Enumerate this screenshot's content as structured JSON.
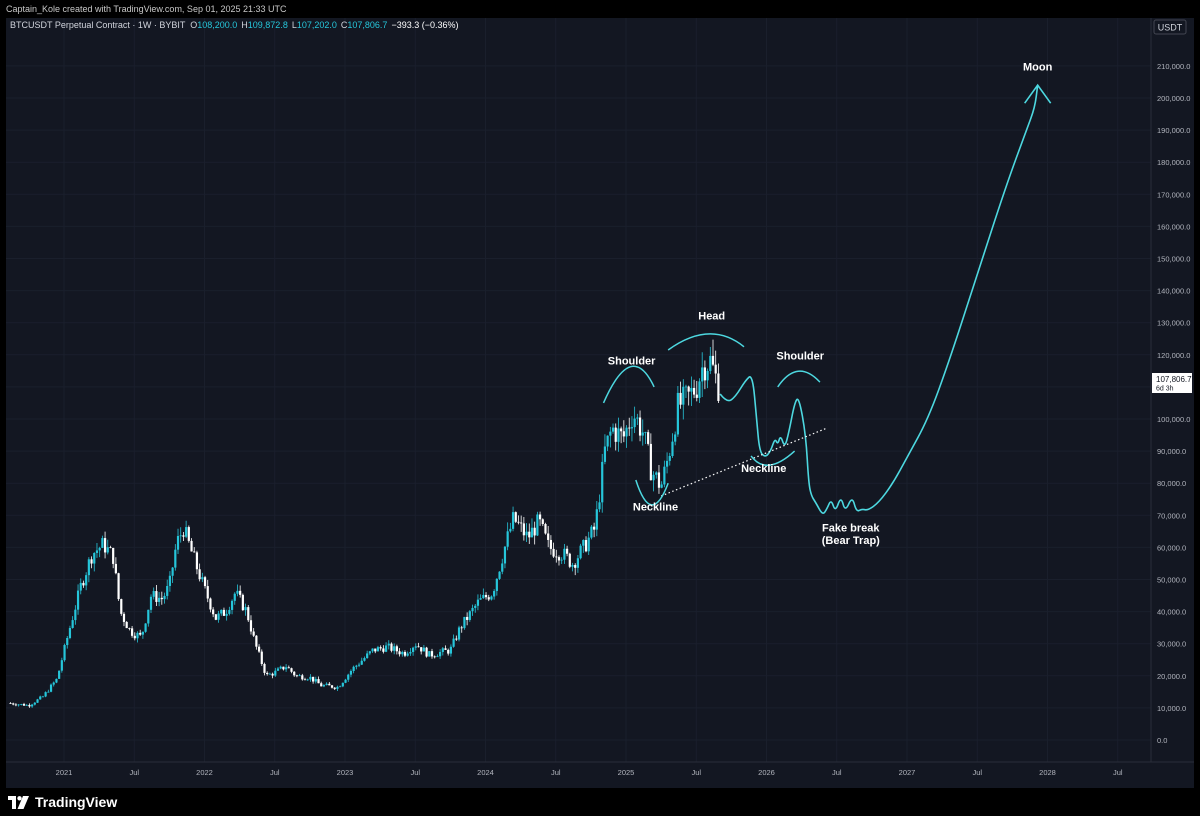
{
  "header": {
    "attribution": "Captain_Kole created with TradingView.com, Sep 01, 2025 21:33 UTC"
  },
  "legend": {
    "symbol": "BTCUSDT Perpetual Contract · 1W · BYBIT",
    "open_label": "O",
    "open": "108,200.0",
    "high_label": "H",
    "high": "109,872.8",
    "low_label": "L",
    "low": "107,202.0",
    "close_label": "C",
    "close": "107,806.7",
    "change": "−393.3 (−0.36%)"
  },
  "price_scale": {
    "currency": "USDT",
    "last_price": "107,806.7",
    "countdown": "6d 3h"
  },
  "brand": {
    "name": "TradingView"
  },
  "colors": {
    "background": "#131722",
    "grid": "#1a1f2c",
    "up": "#26c6da",
    "down": "#ffffff",
    "drawing": "#4dd8e0",
    "text": "#b2b5be",
    "annotation": "#ffffff"
  },
  "chart_data": {
    "type": "candlestick",
    "title": "BTCUSDT Perpetual Contract · 1W · BYBIT",
    "y_axis": {
      "min": 0,
      "max": 215000,
      "ticks": [
        0,
        10000,
        20000,
        30000,
        40000,
        50000,
        60000,
        70000,
        80000,
        90000,
        100000,
        110000,
        120000,
        130000,
        140000,
        150000,
        160000,
        170000,
        180000,
        190000,
        200000,
        210000
      ],
      "tick_labels": [
        "0.0",
        "10,000.0",
        "20,000.0",
        "30,000.0",
        "40,000.0",
        "50,000.0",
        "60,000.0",
        "70,000.0",
        "80,000.0",
        "90,000.0",
        "100,000.0",
        "110,000.0",
        "120,000.0",
        "130,000.0",
        "140,000.0",
        "150,000.0",
        "160,000.0",
        "170,000.0",
        "180,000.0",
        "190,000.0",
        "200,000.0",
        "210,000.0"
      ]
    },
    "x_axis": {
      "start": 2020.6,
      "end": 2028.5,
      "ticks": [
        {
          "t": 2021.0,
          "label": "2021"
        },
        {
          "t": 2021.5,
          "label": "Jul"
        },
        {
          "t": 2022.0,
          "label": "2022"
        },
        {
          "t": 2022.5,
          "label": "Jul"
        },
        {
          "t": 2023.0,
          "label": "2023"
        },
        {
          "t": 2023.5,
          "label": "Jul"
        },
        {
          "t": 2024.0,
          "label": "2024"
        },
        {
          "t": 2024.5,
          "label": "Jul"
        },
        {
          "t": 2025.0,
          "label": "2025"
        },
        {
          "t": 2025.5,
          "label": "Jul"
        },
        {
          "t": 2026.0,
          "label": "2026"
        },
        {
          "t": 2026.5,
          "label": "Jul"
        },
        {
          "t": 2027.0,
          "label": "2027"
        },
        {
          "t": 2027.5,
          "label": "Jul"
        },
        {
          "t": 2028.0,
          "label": "2028"
        },
        {
          "t": 2028.5,
          "label": "Jul"
        }
      ]
    },
    "price_keypoints": [
      [
        2020.6,
        11500
      ],
      [
        2020.75,
        10800
      ],
      [
        2020.85,
        13500
      ],
      [
        2020.95,
        19000
      ],
      [
        2021.03,
        33000
      ],
      [
        2021.12,
        48000
      ],
      [
        2021.2,
        58000
      ],
      [
        2021.28,
        61000
      ],
      [
        2021.35,
        57000
      ],
      [
        2021.4,
        40000
      ],
      [
        2021.47,
        34000
      ],
      [
        2021.55,
        32000
      ],
      [
        2021.62,
        45000
      ],
      [
        2021.7,
        44000
      ],
      [
        2021.75,
        48000
      ],
      [
        2021.8,
        61000
      ],
      [
        2021.85,
        66000
      ],
      [
        2021.92,
        57000
      ],
      [
        2022.0,
        47000
      ],
      [
        2022.08,
        38000
      ],
      [
        2022.15,
        40000
      ],
      [
        2022.22,
        46000
      ],
      [
        2022.3,
        40000
      ],
      [
        2022.36,
        30000
      ],
      [
        2022.44,
        20000
      ],
      [
        2022.5,
        21000
      ],
      [
        2022.58,
        23000
      ],
      [
        2022.65,
        20000
      ],
      [
        2022.75,
        19500
      ],
      [
        2022.83,
        17000
      ],
      [
        2022.95,
        16500
      ],
      [
        2023.05,
        22000
      ],
      [
        2023.2,
        28000
      ],
      [
        2023.3,
        29000
      ],
      [
        2023.42,
        27000
      ],
      [
        2023.5,
        30000
      ],
      [
        2023.6,
        26500
      ],
      [
        2023.75,
        28000
      ],
      [
        2023.82,
        35000
      ],
      [
        2023.95,
        43000
      ],
      [
        2024.05,
        46000
      ],
      [
        2024.15,
        62000
      ],
      [
        2024.2,
        69000
      ],
      [
        2024.3,
        63000
      ],
      [
        2024.38,
        68000
      ],
      [
        2024.45,
        60000
      ],
      [
        2024.55,
        58000
      ],
      [
        2024.62,
        55000
      ],
      [
        2024.7,
        60000
      ],
      [
        2024.78,
        66000
      ],
      [
        2024.85,
        90000
      ],
      [
        2024.9,
        97000
      ],
      [
        2024.98,
        94000
      ],
      [
        2025.05,
        102000
      ],
      [
        2025.12,
        96000
      ],
      [
        2025.18,
        84000
      ],
      [
        2025.25,
        79000
      ],
      [
        2025.3,
        88000
      ],
      [
        2025.37,
        104000
      ],
      [
        2025.45,
        107000
      ],
      [
        2025.5,
        110000
      ],
      [
        2025.55,
        117000
      ],
      [
        2025.6,
        118000
      ],
      [
        2025.66,
        110000
      ],
      [
        2025.67,
        107800
      ]
    ],
    "projection_points": [
      [
        2025.67,
        107800
      ],
      [
        2025.72,
        105000
      ],
      [
        2025.78,
        107000
      ],
      [
        2025.85,
        112000
      ],
      [
        2025.9,
        114000
      ],
      [
        2025.93,
        100000
      ],
      [
        2025.95,
        90000
      ],
      [
        2025.99,
        88000
      ],
      [
        2026.03,
        90000
      ],
      [
        2026.06,
        94000
      ],
      [
        2026.08,
        92000
      ],
      [
        2026.1,
        95000
      ],
      [
        2026.13,
        91000
      ],
      [
        2026.16,
        96000
      ],
      [
        2026.2,
        105000
      ],
      [
        2026.23,
        107000
      ],
      [
        2026.28,
        95000
      ],
      [
        2026.3,
        80000
      ],
      [
        2026.32,
        76000
      ],
      [
        2026.35,
        74000
      ],
      [
        2026.4,
        70000
      ],
      [
        2026.43,
        72000
      ],
      [
        2026.46,
        75000
      ],
      [
        2026.49,
        71000
      ],
      [
        2026.53,
        76000
      ],
      [
        2026.56,
        71000
      ],
      [
        2026.61,
        76000
      ],
      [
        2026.64,
        71000
      ],
      [
        2026.68,
        72000
      ],
      [
        2026.72,
        71500
      ],
      [
        2026.8,
        74000
      ],
      [
        2026.9,
        80000
      ],
      [
        2027.0,
        88000
      ],
      [
        2027.15,
        100000
      ],
      [
        2027.3,
        118000
      ],
      [
        2027.5,
        145000
      ],
      [
        2027.7,
        172000
      ],
      [
        2027.85,
        190000
      ],
      [
        2027.91,
        197000
      ],
      [
        2027.93,
        204000
      ]
    ],
    "trendline": [
      [
        2025.25,
        76000
      ],
      [
        2026.42,
        97000
      ]
    ],
    "annotations": [
      {
        "label": "Shoulder",
        "t": 2025.04,
        "v": 117000
      },
      {
        "label": "Head",
        "t": 2025.61,
        "v": 131000
      },
      {
        "label": "Shoulder",
        "t": 2026.24,
        "v": 118500
      },
      {
        "label": "Neckline",
        "t": 2025.21,
        "v": 71500
      },
      {
        "label": "Neckline",
        "t": 2025.98,
        "v": 83500
      },
      {
        "label": "Fake break",
        "t": 2026.6,
        "v": 65000
      },
      {
        "label": "(Bear Trap)",
        "t": 2026.6,
        "v": 61000
      },
      {
        "label": "Moon",
        "t": 2027.93,
        "v": 208500
      }
    ]
  }
}
